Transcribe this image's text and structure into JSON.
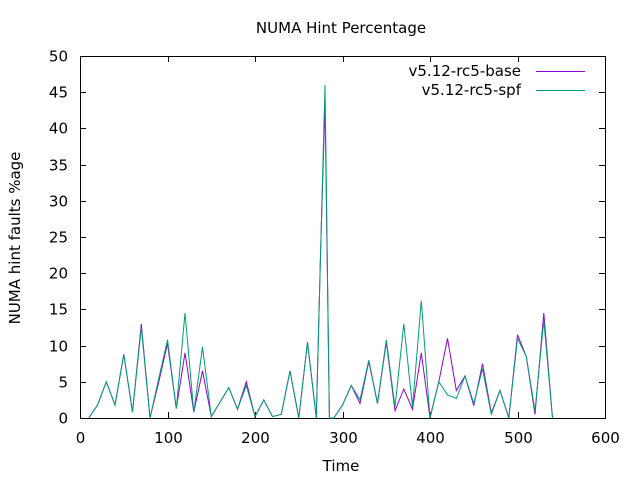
{
  "chart_data": {
    "type": "line",
    "title": "NUMA Hint Percentage",
    "xlabel": "Time",
    "ylabel": "NUMA hint faults %age",
    "xlim": [
      0,
      600
    ],
    "ylim": [
      0,
      50
    ],
    "xticks": [
      0,
      100,
      200,
      300,
      400,
      500,
      600
    ],
    "yticks": [
      0,
      5,
      10,
      15,
      20,
      25,
      30,
      35,
      40,
      45,
      50
    ],
    "grid": false,
    "legend_position": "top-right",
    "series": [
      {
        "name": "v5.12-rc5-base",
        "color": "#9400d3",
        "x": [
          10,
          20,
          30,
          40,
          50,
          60,
          70,
          80,
          90,
          100,
          110,
          120,
          130,
          140,
          150,
          160,
          170,
          180,
          190,
          200,
          210,
          220,
          230,
          240,
          250,
          260,
          270,
          275,
          280,
          285,
          290,
          300,
          310,
          320,
          330,
          340,
          350,
          360,
          370,
          380,
          390,
          400,
          410,
          420,
          430,
          440,
          450,
          460,
          470,
          480,
          490,
          500,
          510,
          520,
          530,
          540
        ],
        "y": [
          0,
          1.8,
          5,
          1.8,
          8.8,
          0.8,
          13,
          0,
          5,
          10.3,
          1.3,
          9,
          0.8,
          6.5,
          0.2,
          2.2,
          4.2,
          1.2,
          5,
          0.2,
          2.5,
          0.2,
          0.5,
          6.5,
          0,
          10.5,
          0,
          23,
          43.5,
          0,
          0,
          1.8,
          4.5,
          2,
          7.8,
          2,
          10.5,
          1,
          4,
          1.2,
          9,
          0,
          5,
          11,
          3.8,
          5.8,
          1.7,
          7.5,
          0.7,
          3.8,
          0,
          11.5,
          8.5,
          0.5,
          14.5,
          0
        ]
      },
      {
        "name": "v5.12-rc5-spf",
        "color": "#009e73",
        "x": [
          10,
          20,
          30,
          40,
          50,
          60,
          70,
          80,
          90,
          100,
          110,
          120,
          130,
          140,
          150,
          160,
          170,
          180,
          190,
          200,
          210,
          220,
          230,
          240,
          250,
          260,
          270,
          275,
          280,
          285,
          290,
          300,
          310,
          320,
          330,
          340,
          350,
          360,
          370,
          380,
          390,
          400,
          410,
          420,
          430,
          440,
          450,
          460,
          470,
          480,
          490,
          500,
          510,
          520,
          530,
          540
        ],
        "y": [
          0,
          1.8,
          5,
          1.8,
          8.8,
          0.8,
          12.5,
          0,
          5.5,
          10.8,
          1.3,
          14.5,
          0.8,
          9.8,
          0.2,
          2.2,
          4.2,
          1.2,
          4.5,
          0.2,
          2.5,
          0.2,
          0.5,
          6.5,
          0,
          10.5,
          0,
          23,
          46,
          0,
          0,
          1.8,
          4.5,
          2.5,
          8,
          2,
          10.8,
          1.5,
          13,
          1.5,
          16.2,
          0,
          5,
          3.2,
          2.7,
          5.8,
          2,
          6.8,
          0.5,
          3.8,
          0,
          11,
          8.5,
          1,
          13.5,
          0
        ]
      }
    ]
  }
}
